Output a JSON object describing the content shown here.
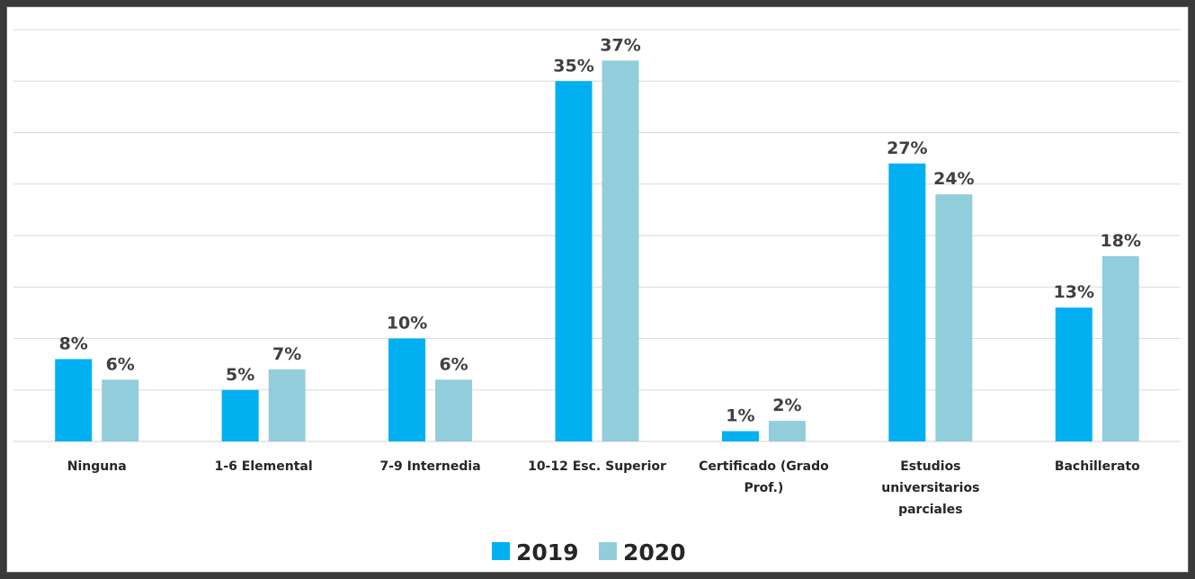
{
  "chart_data": {
    "type": "bar",
    "categories": [
      [
        "Ninguna"
      ],
      [
        "1-6 Elemental"
      ],
      [
        "7-9 Internedia"
      ],
      [
        "10-12 Esc. Superior"
      ],
      [
        "Certificado (Grado",
        "Prof.)"
      ],
      [
        "Estudios",
        "universitarios",
        "parciales"
      ],
      [
        "Bachillerato"
      ]
    ],
    "series": [
      {
        "name": "2019",
        "color": "#00b0f0",
        "values": [
          8,
          5,
          10,
          35,
          1,
          27,
          13
        ],
        "labels": [
          "8%",
          "5%",
          "10%",
          "35%",
          "1%",
          "27%",
          "13%"
        ]
      },
      {
        "name": "2020",
        "color": "#92cddc",
        "values": [
          6,
          7,
          6,
          37,
          2,
          24,
          18
        ],
        "labels": [
          "6%",
          "7%",
          "6%",
          "37%",
          "2%",
          "24%",
          "18%"
        ]
      }
    ],
    "ylim": [
      0,
      40
    ],
    "grid": true,
    "legend": "bottom-center"
  }
}
